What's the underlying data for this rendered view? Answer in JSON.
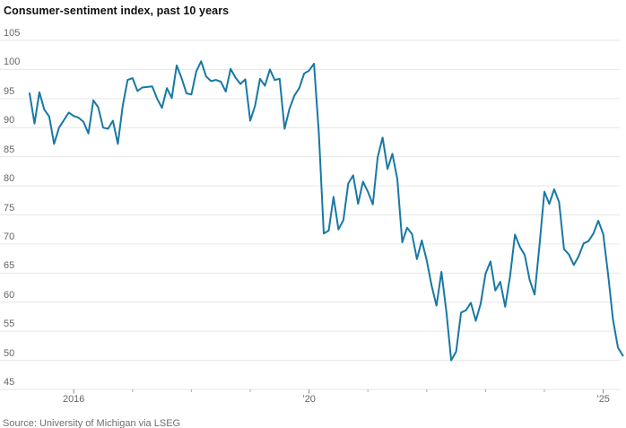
{
  "title": "Consumer-sentiment index, past 10 years",
  "source": "Source: University of Michigan via LSEG",
  "colors": {
    "line": "#1878A5",
    "grid": "#e6e6e6",
    "axis_label": "#666666",
    "tick_major": "#8a8a8a",
    "tick_minor": "#ababab",
    "title": "#111111",
    "source": "#6f6f6f"
  },
  "chart_data": {
    "type": "line",
    "title": "Consumer-sentiment index, past 10 years",
    "series_name": "University of Michigan consumer-sentiment index",
    "x_start": {
      "year": 2015,
      "month": 4
    },
    "x_end": {
      "year": 2025,
      "month": 5
    },
    "frequency": "monthly",
    "ylim": [
      45,
      105
    ],
    "grid": true,
    "yticks": [
      105,
      100,
      95,
      90,
      85,
      80,
      75,
      70,
      65,
      60,
      55,
      50,
      45
    ],
    "xticks": [
      {
        "year": 2016,
        "label": "2016"
      },
      {
        "year": 2017,
        "label": ""
      },
      {
        "year": 2018,
        "label": ""
      },
      {
        "year": 2019,
        "label": ""
      },
      {
        "year": 2020,
        "label": "’20"
      },
      {
        "year": 2021,
        "label": ""
      },
      {
        "year": 2022,
        "label": ""
      },
      {
        "year": 2023,
        "label": ""
      },
      {
        "year": 2024,
        "label": ""
      },
      {
        "year": 2025,
        "label": "’25"
      }
    ],
    "values": [
      95.9,
      90.7,
      96.1,
      93.1,
      91.9,
      87.2,
      90.0,
      91.3,
      92.6,
      92.0,
      91.7,
      91.0,
      89.0,
      94.7,
      93.5,
      90.0,
      89.8,
      91.2,
      87.2,
      93.8,
      98.2,
      98.5,
      96.3,
      96.9,
      97.0,
      97.1,
      95.0,
      93.4,
      96.8,
      95.1,
      100.7,
      98.5,
      95.9,
      95.7,
      99.7,
      101.4,
      98.8,
      98.0,
      98.2,
      97.9,
      96.2,
      100.1,
      98.6,
      97.5,
      98.3,
      91.2,
      93.8,
      98.4,
      97.2,
      100.0,
      98.2,
      98.4,
      89.8,
      93.2,
      95.5,
      96.8,
      99.3,
      99.8,
      101.0,
      89.1,
      71.8,
      72.3,
      78.1,
      72.5,
      74.1,
      80.4,
      81.8,
      76.9,
      80.7,
      79.0,
      76.8,
      84.9,
      88.3,
      82.9,
      85.5,
      81.2,
      70.3,
      72.8,
      71.7,
      67.4,
      70.6,
      67.2,
      62.8,
      59.4,
      65.2,
      58.4,
      50.0,
      51.5,
      58.2,
      58.6,
      59.9,
      56.8,
      59.7,
      64.9,
      67.0,
      62.0,
      63.5,
      59.2,
      64.4,
      71.6,
      69.5,
      68.1,
      63.8,
      61.3,
      69.7,
      79.0,
      76.9,
      79.4,
      77.2,
      69.1,
      68.2,
      66.4,
      67.9,
      70.1,
      70.5,
      71.8,
      74.0,
      71.7,
      64.7,
      57.0,
      52.2,
      50.8
    ]
  }
}
